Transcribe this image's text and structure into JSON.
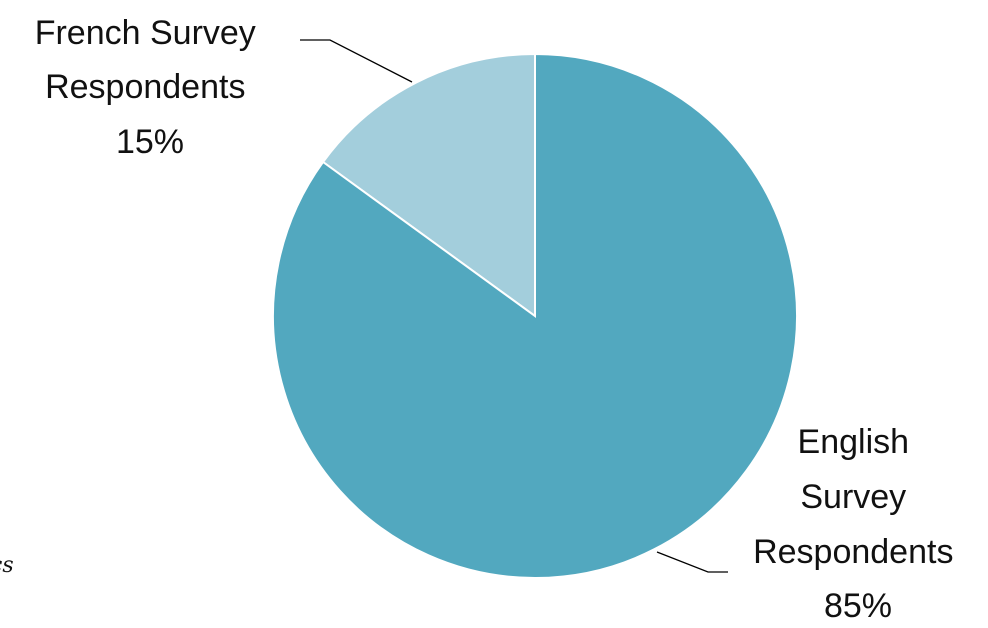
{
  "chart_data": {
    "type": "pie",
    "title": "",
    "slices": [
      {
        "label_lines": [
          "French Survey",
          "Respondents",
          "15%"
        ],
        "value": 15,
        "color": "#a3cedc"
      },
      {
        "label_lines": [
          "English",
          "Survey",
          "Respondents",
          "85%"
        ],
        "value": 85,
        "color": "#52a8bf"
      }
    ],
    "start_angle_deg": 0,
    "direction": "counterclockwise-first-slice",
    "legend": "none",
    "data_labels": "outside with leader lines"
  },
  "edge_fragment": "cs"
}
